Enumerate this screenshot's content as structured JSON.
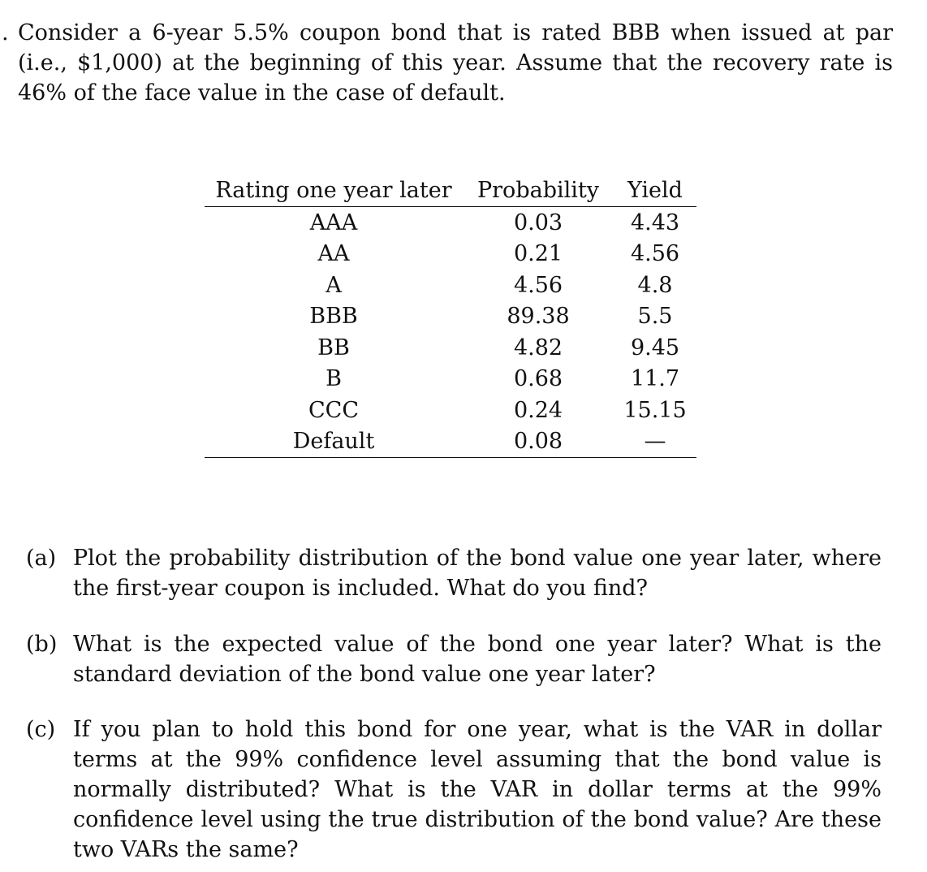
{
  "problem": {
    "marker": ".",
    "text": "Consider a 6-year 5.5% coupon bond that is rated BBB when issued at par (i.e., $1,000) at the beginning of this year. Assume that the recovery rate is 46% of the face value in the case of default."
  },
  "table": {
    "headers": [
      "Rating one year later",
      "Probability",
      "Yield"
    ],
    "rows": [
      {
        "rating": "AAA",
        "probability": "0.03",
        "yield": "4.43"
      },
      {
        "rating": "AA",
        "probability": "0.21",
        "yield": "4.56"
      },
      {
        "rating": "A",
        "probability": "4.56",
        "yield": "4.8"
      },
      {
        "rating": "BBB",
        "probability": "89.38",
        "yield": "5.5"
      },
      {
        "rating": "BB",
        "probability": "4.82",
        "yield": "9.45"
      },
      {
        "rating": "B",
        "probability": "0.68",
        "yield": "11.7"
      },
      {
        "rating": "CCC",
        "probability": "0.24",
        "yield": "15.15"
      },
      {
        "rating": "Default",
        "probability": "0.08",
        "yield": "—"
      }
    ]
  },
  "questions": [
    {
      "label": "(a)",
      "text": "Plot the probability distribution of the bond value one year later, where the first-year coupon is included. What do you find?"
    },
    {
      "label": "(b)",
      "text": "What is the expected value of the bond one year later? What is the standard deviation of the bond value one year later?"
    },
    {
      "label": "(c)",
      "text": "If you plan to hold this bond for one year, what is the VAR in dollar terms at the 99% confidence level assuming that the bond value is normally distributed? What is the VAR in dollar terms at the 99% confidence level using the true distribution of the bond value? Are these two VARs the same?"
    }
  ]
}
